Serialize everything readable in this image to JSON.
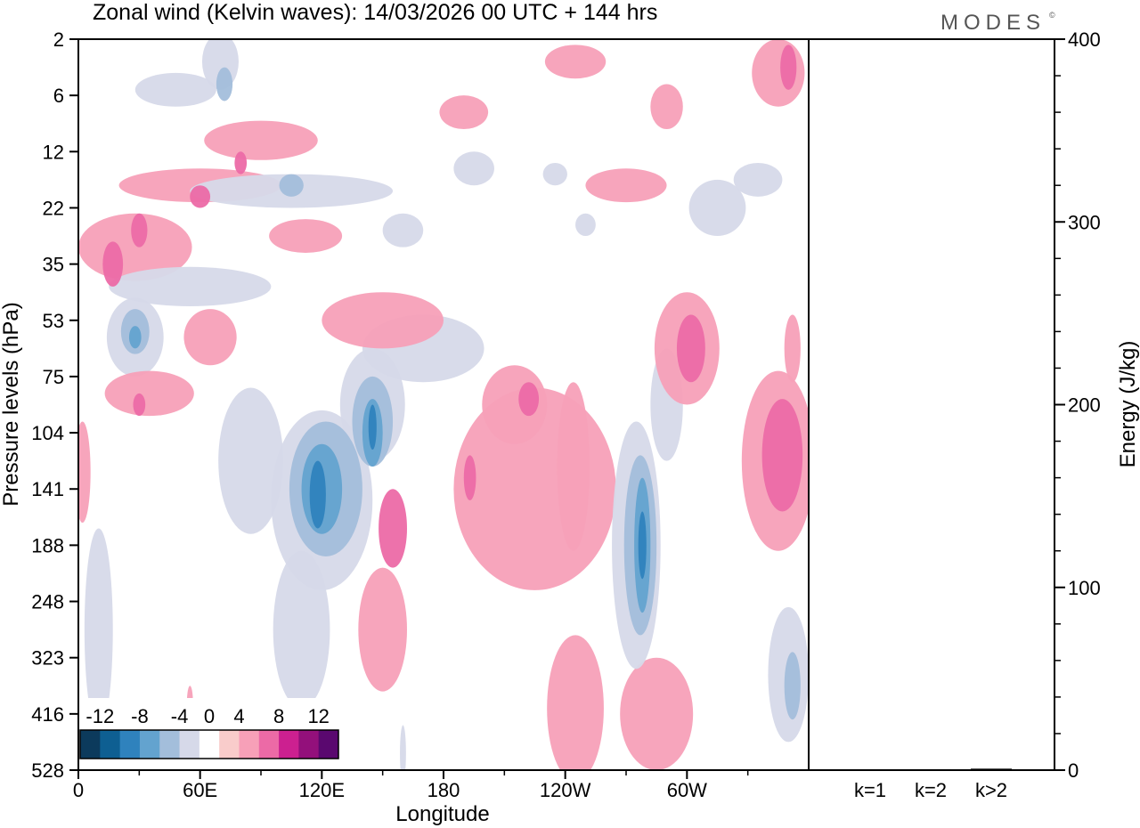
{
  "header": {
    "title": "Zonal wind (Kelvin waves):  14/03/2026  00 UTC  + 144 hrs",
    "logo_text": "MODES",
    "logo_mark": "©"
  },
  "chart_data": [
    {
      "type": "heatmap",
      "title": "Zonal wind (Kelvin waves):  14/03/2026  00 UTC  + 144 hrs",
      "xlabel": "Longitude",
      "ylabel": "Pressure levels (hPa)",
      "x_ticks": [
        {
          "label": "0",
          "lon": 0
        },
        {
          "label": "60E",
          "lon": 60
        },
        {
          "label": "120E",
          "lon": 120
        },
        {
          "label": "180",
          "lon": 180
        },
        {
          "label": "120W",
          "lon": 240
        },
        {
          "label": "60W",
          "lon": 300
        }
      ],
      "xlim": [
        0,
        360
      ],
      "y_ticks": [
        "2",
        "6",
        "12",
        "22",
        "35",
        "53",
        "75",
        "104",
        "141",
        "188",
        "248",
        "323",
        "416",
        "528"
      ],
      "colorbar": {
        "labels": [
          "-12",
          "-8",
          "-4",
          "0",
          "4",
          "8",
          "12"
        ],
        "bounds": [
          -14,
          -12,
          -10,
          -8,
          -6,
          -4,
          -2,
          2,
          4,
          6,
          8,
          10,
          12,
          14
        ],
        "colors": [
          "#0c3a5c",
          "#0e5f92",
          "#2f82bd",
          "#63a3cf",
          "#a3bedb",
          "#d6d9e9",
          "#ffffff",
          "#f9cccb",
          "#f7a0b8",
          "#ec6aa6",
          "#cc2090",
          "#93107b",
          "#5a086f"
        ],
        "placement": "bottom-left"
      },
      "blobs": [
        {
          "lon": 70,
          "lev": 0.4,
          "dlon": 9,
          "dlev": 0.5,
          "value": -4
        },
        {
          "lon": 72,
          "lev": 0.8,
          "dlon": 4,
          "dlev": 0.3,
          "value": -6
        },
        {
          "lon": 90,
          "lev": 1.8,
          "dlon": 28,
          "dlev": 0.35,
          "value": 4
        },
        {
          "lon": 80,
          "lev": 2.2,
          "dlon": 3,
          "dlev": 0.2,
          "value": 6
        },
        {
          "lon": 60,
          "lev": 2.6,
          "dlon": 40,
          "dlev": 0.3,
          "value": 4
        },
        {
          "lon": 60,
          "lev": 2.8,
          "dlon": 5,
          "dlev": 0.2,
          "value": 6
        },
        {
          "lon": 28,
          "lev": 3.7,
          "dlon": 28,
          "dlev": 0.6,
          "value": 4
        },
        {
          "lon": 17,
          "lev": 4.0,
          "dlon": 5,
          "dlev": 0.4,
          "value": 6
        },
        {
          "lon": 30,
          "lev": 3.4,
          "dlon": 4,
          "dlev": 0.3,
          "value": 6
        },
        {
          "lon": 105,
          "lev": 2.7,
          "dlon": 50,
          "dlev": 0.3,
          "value": -4
        },
        {
          "lon": 105,
          "lev": 2.6,
          "dlon": 6,
          "dlev": 0.2,
          "value": -6
        },
        {
          "lon": 55,
          "lev": 4.4,
          "dlon": 40,
          "dlev": 0.35,
          "value": -4
        },
        {
          "lon": 28,
          "lev": 5.3,
          "dlon": 14,
          "dlev": 0.7,
          "value": -4
        },
        {
          "lon": 28,
          "lev": 5.2,
          "dlon": 7,
          "dlev": 0.4,
          "value": -6
        },
        {
          "lon": 28,
          "lev": 5.3,
          "dlon": 3,
          "dlev": 0.2,
          "value": -8
        },
        {
          "lon": 65,
          "lev": 5.3,
          "dlon": 13,
          "dlev": 0.5,
          "value": 4
        },
        {
          "lon": 35,
          "lev": 6.3,
          "dlon": 22,
          "dlev": 0.4,
          "value": 4
        },
        {
          "lon": 30,
          "lev": 6.5,
          "dlon": 3,
          "dlev": 0.2,
          "value": 6
        },
        {
          "lon": 2,
          "lev": 7.7,
          "dlon": 4,
          "dlev": 0.9,
          "value": 4
        },
        {
          "lon": 48,
          "lev": 0.9,
          "dlon": 20,
          "dlev": 0.3,
          "value": -4
        },
        {
          "lon": 112,
          "lev": 3.5,
          "dlon": 18,
          "dlev": 0.3,
          "value": 4
        },
        {
          "lon": 85,
          "lev": 7.5,
          "dlon": 16,
          "dlev": 1.3,
          "value": -4
        },
        {
          "lon": 120,
          "lev": 8.2,
          "dlon": 25,
          "dlev": 1.6,
          "value": -4
        },
        {
          "lon": 122,
          "lev": 8.0,
          "dlon": 18,
          "dlev": 1.2,
          "value": -6
        },
        {
          "lon": 120,
          "lev": 8.0,
          "dlon": 10,
          "dlev": 0.8,
          "value": -8
        },
        {
          "lon": 118,
          "lev": 8.1,
          "dlon": 4,
          "dlev": 0.6,
          "value": -10
        },
        {
          "lon": 145,
          "lev": 6.5,
          "dlon": 16,
          "dlev": 1.0,
          "value": -4
        },
        {
          "lon": 145,
          "lev": 6.8,
          "dlon": 10,
          "dlev": 0.8,
          "value": -6
        },
        {
          "lon": 145,
          "lev": 7.0,
          "dlon": 5,
          "dlev": 0.6,
          "value": -8
        },
        {
          "lon": 145,
          "lev": 6.9,
          "dlon": 2,
          "dlev": 0.4,
          "value": -10
        },
        {
          "lon": 170,
          "lev": 5.5,
          "dlon": 30,
          "dlev": 0.6,
          "value": -4
        },
        {
          "lon": 150,
          "lev": 5.0,
          "dlon": 30,
          "dlev": 0.5,
          "value": 4
        },
        {
          "lon": 110,
          "lev": 10.5,
          "dlon": 14,
          "dlev": 1.4,
          "value": -4
        },
        {
          "lon": 10,
          "lev": 10.5,
          "dlon": 7,
          "dlev": 1.8,
          "value": -4
        },
        {
          "lon": 150,
          "lev": 10.5,
          "dlon": 12,
          "dlev": 1.1,
          "value": 4
        },
        {
          "lon": 225,
          "lev": 8.0,
          "dlon": 40,
          "dlev": 1.8,
          "value": 4
        },
        {
          "lon": 215,
          "lev": 6.5,
          "dlon": 16,
          "dlev": 0.7,
          "value": 4
        },
        {
          "lon": 222,
          "lev": 6.4,
          "dlon": 5,
          "dlev": 0.3,
          "value": 6
        },
        {
          "lon": 155,
          "lev": 8.7,
          "dlon": 7,
          "dlev": 0.7,
          "value": 6
        },
        {
          "lon": 193,
          "lev": 7.8,
          "dlon": 3,
          "dlev": 0.4,
          "value": 6
        },
        {
          "lon": 244,
          "lev": 7.6,
          "dlon": 8,
          "dlev": 1.5,
          "value": 4
        },
        {
          "lon": 245,
          "lev": 11.9,
          "dlon": 14,
          "dlev": 1.3,
          "value": 4
        },
        {
          "lon": 285,
          "lev": 12.0,
          "dlon": 18,
          "dlev": 1.0,
          "value": 4
        },
        {
          "lon": 275,
          "lev": 9.0,
          "dlon": 12,
          "dlev": 2.2,
          "value": -4
        },
        {
          "lon": 277,
          "lev": 9.0,
          "dlon": 8,
          "dlev": 1.6,
          "value": -6
        },
        {
          "lon": 278,
          "lev": 9.0,
          "dlon": 4,
          "dlev": 1.2,
          "value": -8
        },
        {
          "lon": 278,
          "lev": 9.0,
          "dlon": 2,
          "dlev": 0.6,
          "value": -10
        },
        {
          "lon": 290,
          "lev": 6.5,
          "dlon": 8,
          "dlev": 1.0,
          "value": -4
        },
        {
          "lon": 300,
          "lev": 5.5,
          "dlon": 16,
          "dlev": 1.0,
          "value": 4
        },
        {
          "lon": 302,
          "lev": 5.5,
          "dlon": 7,
          "dlev": 0.6,
          "value": 6
        },
        {
          "lon": 345,
          "lev": 7.5,
          "dlon": 18,
          "dlev": 1.6,
          "value": 4
        },
        {
          "lon": 347,
          "lev": 7.4,
          "dlon": 10,
          "dlev": 1.0,
          "value": 6
        },
        {
          "lon": 352,
          "lev": 5.5,
          "dlon": 4,
          "dlev": 0.6,
          "value": 4
        },
        {
          "lon": 350,
          "lev": 11.3,
          "dlon": 10,
          "dlev": 1.2,
          "value": -4
        },
        {
          "lon": 352,
          "lev": 11.5,
          "dlon": 4,
          "dlev": 0.6,
          "value": -6
        },
        {
          "lon": 345,
          "lev": 0.6,
          "dlon": 13,
          "dlev": 0.6,
          "value": 4
        },
        {
          "lon": 350,
          "lev": 0.5,
          "dlon": 4,
          "dlev": 0.4,
          "value": 6
        },
        {
          "lon": 245,
          "lev": 0.4,
          "dlon": 15,
          "dlev": 0.3,
          "value": 4
        },
        {
          "lon": 290,
          "lev": 1.2,
          "dlon": 8,
          "dlev": 0.4,
          "value": 4
        },
        {
          "lon": 190,
          "lev": 1.3,
          "dlon": 12,
          "dlev": 0.3,
          "value": 4
        },
        {
          "lon": 270,
          "lev": 2.6,
          "dlon": 20,
          "dlev": 0.3,
          "value": 4
        },
        {
          "lon": 335,
          "lev": 2.5,
          "dlon": 12,
          "dlev": 0.3,
          "value": -4
        },
        {
          "lon": 315,
          "lev": 3.0,
          "dlon": 14,
          "dlev": 0.5,
          "value": -4
        },
        {
          "lon": 195,
          "lev": 2.3,
          "dlon": 10,
          "dlev": 0.3,
          "value": -4
        },
        {
          "lon": 235,
          "lev": 2.4,
          "dlon": 6,
          "dlev": 0.2,
          "value": -4
        },
        {
          "lon": 160,
          "lev": 3.4,
          "dlon": 10,
          "dlev": 0.3,
          "value": -4
        },
        {
          "lon": 160,
          "lev": 12.7,
          "dlon": 1.5,
          "dlev": 0.5,
          "value": -4
        },
        {
          "lon": 55,
          "lev": 11.8,
          "dlon": 1.5,
          "dlev": 0.3,
          "value": 4
        },
        {
          "lon": 250,
          "lev": 3.3,
          "dlon": 5,
          "dlev": 0.2,
          "value": -4
        }
      ]
    },
    {
      "type": "bar",
      "ylabel": "Energy (J/kg)",
      "ylim": [
        0,
        400
      ],
      "y_ticks": [
        "0",
        "100",
        "200",
        "300",
        "400"
      ],
      "categories": [
        "k=1",
        "k=2",
        "k>2"
      ],
      "values": [
        0.3,
        0.5,
        0.8
      ]
    }
  ]
}
